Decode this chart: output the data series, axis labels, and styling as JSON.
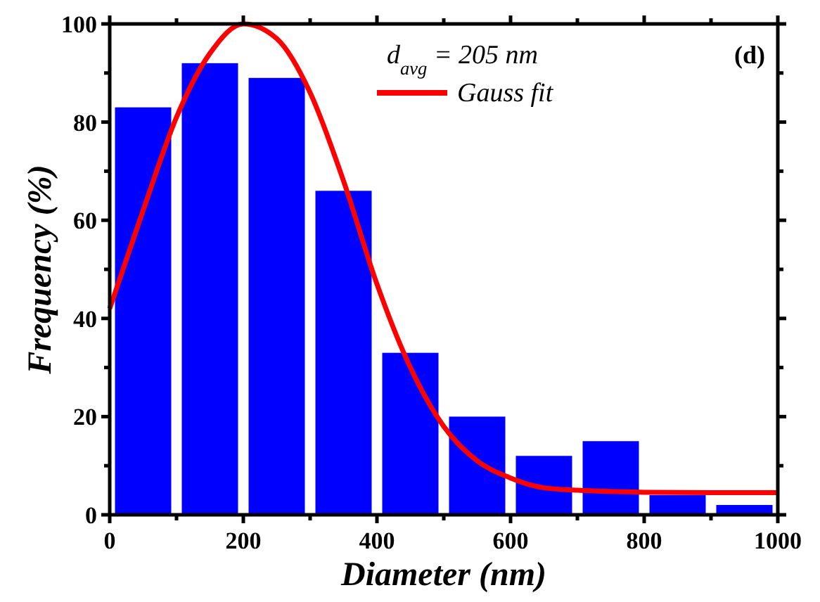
{
  "chart_data": {
    "type": "bar",
    "xlabel": "Diameter (nm)",
    "ylabel": "Frequency (%)",
    "x": [
      50,
      150,
      250,
      350,
      450,
      550,
      650,
      750,
      850,
      950
    ],
    "values": [
      83,
      92,
      89,
      66,
      33,
      20,
      12,
      15,
      4,
      2
    ],
    "color": "#0000ff",
    "series": [
      {
        "type": "line",
        "name": "Gauss fit",
        "color": "#ff0000",
        "x": [
          0,
          50,
          100,
          150,
          200,
          250,
          300,
          350,
          400,
          450,
          500,
          550,
          600,
          650,
          700,
          800,
          900,
          1000
        ],
        "values": [
          42,
          62,
          81,
          94,
          100,
          97,
          86,
          68,
          47,
          30,
          18,
          11,
          7.5,
          5.5,
          5,
          4.6,
          4.5,
          4.5
        ]
      }
    ],
    "annotations": [
      "d$_{avg}$ = 205 nm",
      "(d)"
    ],
    "xlim": [
      0,
      1000
    ],
    "xticks": [
      0,
      {
        "value": 100,
        "label": null
      },
      200,
      {
        "value": 300,
        "label": null
      },
      400,
      {
        "value": 500,
        "label": null
      },
      600,
      {
        "value": 700,
        "label": null
      },
      800,
      {
        "value": 900,
        "label": null
      },
      1000
    ],
    "ylim": [
      0,
      100
    ],
    "yticks": [
      0,
      {
        "value": 10,
        "label": null
      },
      20,
      {
        "value": 30,
        "label": null
      },
      40,
      {
        "value": 50,
        "label": null
      },
      60,
      {
        "value": 70,
        "label": null
      },
      80,
      {
        "value": 90,
        "label": null
      },
      100
    ],
    "legend": "top right",
    "line_style": "solid",
    "grid": false
  }
}
